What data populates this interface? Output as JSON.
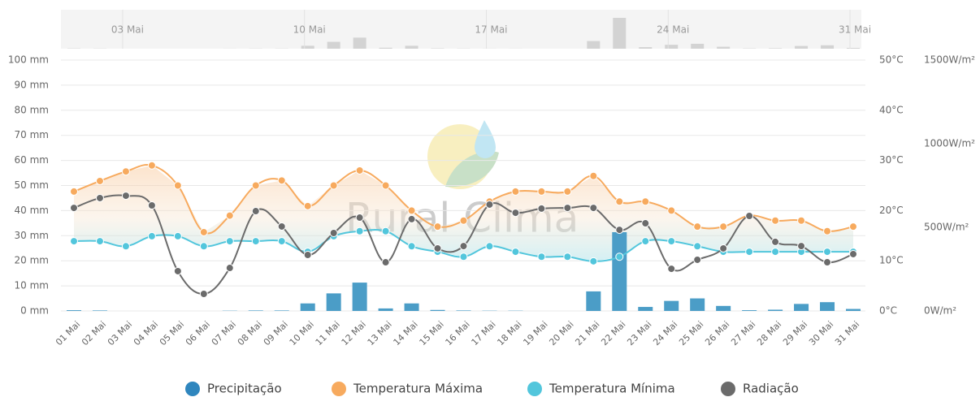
{
  "chart_data": {
    "type": "combo",
    "watermark": "Rural Clima",
    "categories": [
      "01 Mai",
      "02 Mai",
      "03 Mai",
      "04 Mai",
      "05 Mai",
      "06 Mai",
      "07 Mai",
      "08 Mai",
      "09 Mai",
      "10 Mai",
      "11 Mai",
      "12 Mai",
      "13 Mai",
      "14 Mai",
      "15 Mai",
      "16 Mai",
      "17 Mai",
      "18 Mai",
      "19 Mai",
      "20 Mai",
      "21 Mai",
      "22 Mai",
      "23 Mai",
      "24 Mai",
      "25 Mai",
      "26 Mai",
      "27 Mai",
      "28 Mai",
      "29 Mai",
      "30 Mai",
      "31 Mai"
    ],
    "navigator_ticks": [
      2,
      9,
      16,
      23,
      30
    ],
    "series": [
      {
        "name": "Precipitação",
        "type": "bar",
        "axis": "y",
        "color": "#4b9dc7",
        "legend_color": "#2f86be",
        "values": [
          0.3,
          0.2,
          0,
          0,
          0,
          0,
          0.1,
          0.2,
          0.2,
          3,
          7,
          11.3,
          1,
          3,
          0.4,
          0.2,
          0.1,
          0.1,
          0,
          0,
          7.8,
          31.4,
          1.6,
          4,
          5,
          2,
          0.3,
          0.5,
          2.8,
          3.5,
          0.8
        ]
      },
      {
        "name": "Temperatura Máxima",
        "type": "line",
        "axis": "y2",
        "color": "#f7aa5e",
        "values": [
          23.8,
          25.9,
          27.8,
          29,
          25,
          15.7,
          19,
          25,
          26,
          20.9,
          25,
          28,
          25,
          20,
          16.8,
          18,
          21.8,
          23.8,
          23.8,
          23.8,
          26.9,
          21.8,
          21.8,
          20,
          16.8,
          16.8,
          19,
          18,
          18,
          15.9,
          16.8
        ]
      },
      {
        "name": "Temperatura Mínima",
        "type": "line",
        "axis": "y2",
        "color": "#52c6dc",
        "values": [
          13.9,
          13.9,
          12.9,
          14.9,
          14.9,
          12.9,
          13.9,
          13.9,
          13.9,
          11.8,
          14.9,
          15.9,
          15.9,
          12.9,
          11.8,
          10.8,
          12.9,
          11.8,
          10.8,
          10.8,
          9.9,
          10.8,
          13.9,
          13.9,
          12.9,
          11.8,
          11.8,
          11.8,
          11.8,
          11.8,
          11.8
        ]
      },
      {
        "name": "Radiação",
        "type": "line",
        "axis": "y3",
        "color": "#6b6b6b",
        "values": [
          616,
          675,
          689,
          631,
          238,
          102,
          257,
          597,
          505,
          335,
          466,
          558,
          291,
          549,
          374,
          388,
          636,
          587,
          612,
          616,
          616,
          485,
          524,
          252,
          306,
          374,
          568,
          413,
          388,
          291,
          340
        ]
      }
    ],
    "ylim": [
      0,
      100
    ],
    "yticks": [
      {
        "value": 0,
        "label": "0 mm"
      },
      {
        "value": 10,
        "label": "10 mm"
      },
      {
        "value": 20,
        "label": "20 mm"
      },
      {
        "value": 30,
        "label": "30 mm"
      },
      {
        "value": 40,
        "label": "40 mm"
      },
      {
        "value": 50,
        "label": "50 mm"
      },
      {
        "value": 60,
        "label": "60 mm"
      },
      {
        "value": 70,
        "label": "70 mm"
      },
      {
        "value": 80,
        "label": "80 mm"
      },
      {
        "value": 90,
        "label": "90 mm"
      },
      {
        "value": 100,
        "label": "100 mm"
      }
    ],
    "y2lim": [
      0,
      50
    ],
    "y2ticks": [
      {
        "value": 0,
        "label": "0°C"
      },
      {
        "value": 10,
        "label": "10°C"
      },
      {
        "value": 20,
        "label": "20°C"
      },
      {
        "value": 30,
        "label": "30°C"
      },
      {
        "value": 40,
        "label": "40°C"
      },
      {
        "value": 50,
        "label": "50°C"
      }
    ],
    "y3lim": [
      0,
      1500
    ],
    "y3ticks": [
      {
        "value": 0,
        "label": "0W/m²"
      },
      {
        "value": 500,
        "label": "500W/m²"
      },
      {
        "value": 1000,
        "label": "1000W/m²"
      },
      {
        "value": 1500,
        "label": "1500W/m²"
      }
    ],
    "grid": true,
    "legend": "bottom"
  }
}
